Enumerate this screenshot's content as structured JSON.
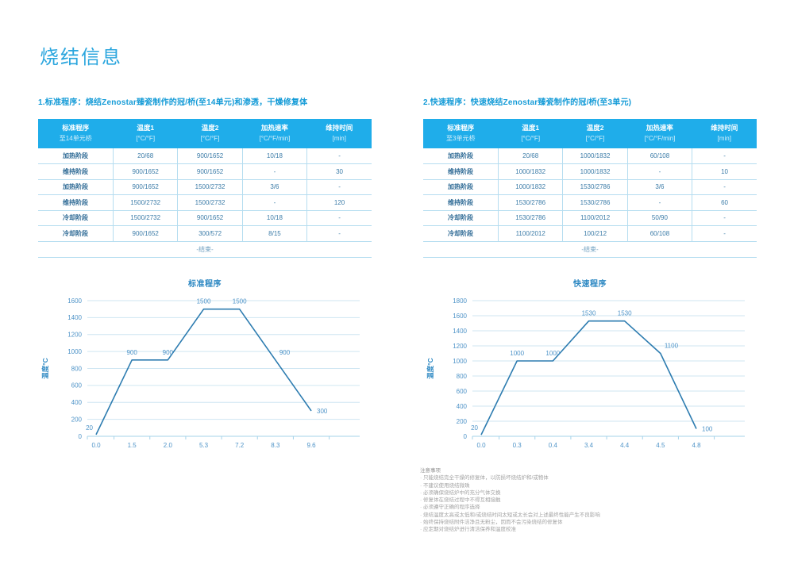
{
  "page": {
    "title": "烧结信息"
  },
  "colors": {
    "header_bg": "#1fadea",
    "title_blue": "#2ba6de",
    "heading_blue": "#149bd7",
    "table_text": "#3c7ca8",
    "table_stage": "#2e6a95",
    "divider": "#b5ddf0",
    "footer_text": "#6e9fc0",
    "chart_line": "#2d7cb0",
    "chart_label": "#4f94c8",
    "chart_title": "#2b87c2",
    "grid": "#cfe6f2",
    "axis": "#a5d3ea",
    "note_gray": "#a3a3a3"
  },
  "sections": [
    {
      "heading": "1.标准程序：烧结Zenostar臻瓷制作的冠/桥(至14单元)和渗透，干燥修复体",
      "table": {
        "header_line1": [
          "标准程序",
          "温度1",
          "温度2",
          "加热速率",
          "维持时间"
        ],
        "header_line2": [
          "至14单元桥",
          "[°C/°F]",
          "[°C/°F]",
          "[°C/°F/min]",
          "[min]"
        ],
        "rows": [
          [
            "加热阶段",
            "20/68",
            "900/1652",
            "10/18",
            "-"
          ],
          [
            "维持阶段",
            "900/1652",
            "900/1652",
            "-",
            "30"
          ],
          [
            "加热阶段",
            "900/1652",
            "1500/2732",
            "3/6",
            "-"
          ],
          [
            "维持阶段",
            "1500/2732",
            "1500/2732",
            "-",
            "120"
          ],
          [
            "冷却阶段",
            "1500/2732",
            "900/1652",
            "10/18",
            "-"
          ],
          [
            "冷却阶段",
            "900/1652",
            "300/572",
            "8/15",
            "-"
          ]
        ],
        "footer": "-结束-"
      }
    },
    {
      "heading": "2.快速程序：快速烧结Zenostar臻瓷制作的冠/桥(至3单元)",
      "table": {
        "header_line1": [
          "标准程序",
          "温度1",
          "温度2",
          "加热速率",
          "维持时间"
        ],
        "header_line2": [
          "至3单元桥",
          "[°C/°F]",
          "[°C/°F]",
          "[°C/°F/min]",
          "[min]"
        ],
        "rows": [
          [
            "加热阶段",
            "20/68",
            "1000/1832",
            "60/108",
            "-"
          ],
          [
            "维持阶段",
            "1000/1832",
            "1000/1832",
            "-",
            "10"
          ],
          [
            "加热阶段",
            "1000/1832",
            "1530/2786",
            "3/6",
            "-"
          ],
          [
            "维持阶段",
            "1530/2786",
            "1530/2786",
            "-",
            "60"
          ],
          [
            "冷却阶段",
            "1530/2786",
            "1100/2012",
            "50/90",
            "-"
          ],
          [
            "冷却阶段",
            "1100/2012",
            "100/212",
            "60/108",
            "-"
          ]
        ],
        "footer": "-结束-"
      }
    }
  ],
  "chart_data": [
    {
      "type": "line",
      "title": "标准程序",
      "ylabel": "温度°C",
      "x": [
        0.0,
        1.5,
        2.0,
        5.3,
        7.2,
        8.3,
        9.6
      ],
      "x_labels": [
        "0.0",
        "1.5",
        "2.0",
        "5.3",
        "7.2",
        "8.3",
        "9.6"
      ],
      "values": [
        20,
        900,
        900,
        1500,
        1500,
        900,
        300
      ],
      "point_labels": [
        "20",
        "900",
        "900",
        "1500",
        "1500",
        "900",
        "300"
      ],
      "label_pos": [
        "left",
        "above",
        "above",
        "above",
        "above",
        "right-above",
        "right"
      ],
      "ylim": [
        0,
        1600
      ],
      "ytick_step": 200,
      "grid": true,
      "legend": "none"
    },
    {
      "type": "line",
      "title": "快速程序",
      "ylabel": "温度°C",
      "x": [
        0.0,
        0.3,
        0.4,
        3.4,
        4.4,
        4.5,
        4.8
      ],
      "x_labels": [
        "0.0",
        "0.3",
        "0.4",
        "3.4",
        "4.4",
        "4.5",
        "4.8"
      ],
      "values": [
        20,
        1000,
        1000,
        1530,
        1530,
        1100,
        100
      ],
      "point_labels": [
        "20",
        "1000",
        "1000",
        "1530",
        "1530",
        "1100",
        "100"
      ],
      "label_pos": [
        "left",
        "above",
        "above",
        "above",
        "above",
        "right-above",
        "right"
      ],
      "ylim": [
        0,
        1800
      ],
      "ytick_step": 200,
      "grid": true,
      "legend": "none"
    }
  ],
  "notes": {
    "title": "注意事项",
    "items": [
      "只能烧结完全干燥的修复体，以防损坏烧结炉和/或物体",
      "不建议使用烧结微珠",
      "必须确保烧结炉中的充分气体交换",
      "修复体在烧结过程中不得互相接触",
      "必须遵守正确的程序选择",
      "烧结温度太高或太低和/或烧结时间太短或太长会对上述最终性能产生不良影响",
      "始终保持烧结附件洁净且无粉尘，因而不会污染烧结的修复体",
      "应定期对烧结炉进行清洁保养和温度校准"
    ]
  }
}
